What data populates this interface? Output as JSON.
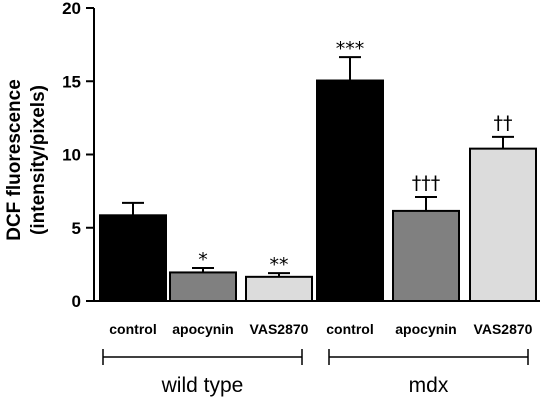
{
  "chart_data": {
    "type": "bar",
    "ylabel_line1": "DCF fluorescence",
    "ylabel_line2": "(intensity/pixels)",
    "ylim": [
      0,
      20
    ],
    "yticks": [
      0,
      5,
      10,
      15,
      20
    ],
    "categories": [
      "control",
      "apocynin",
      "VAS2870",
      "control",
      "apocynin",
      "VAS2870"
    ],
    "values": [
      5.85,
      1.95,
      1.65,
      15.05,
      6.15,
      10.4
    ],
    "errors": [
      0.85,
      0.3,
      0.25,
      1.6,
      0.95,
      0.8
    ],
    "colors": [
      "#000000",
      "#808080",
      "#dcdcdc",
      "#000000",
      "#808080",
      "#dcdcdc"
    ],
    "significance": [
      "",
      "*",
      "**",
      "***",
      "†††",
      "††"
    ],
    "groups": [
      {
        "label": "wild type",
        "members": [
          0,
          1,
          2
        ]
      },
      {
        "label": "mdx",
        "members": [
          3,
          4,
          5
        ]
      }
    ],
    "grid": false
  }
}
